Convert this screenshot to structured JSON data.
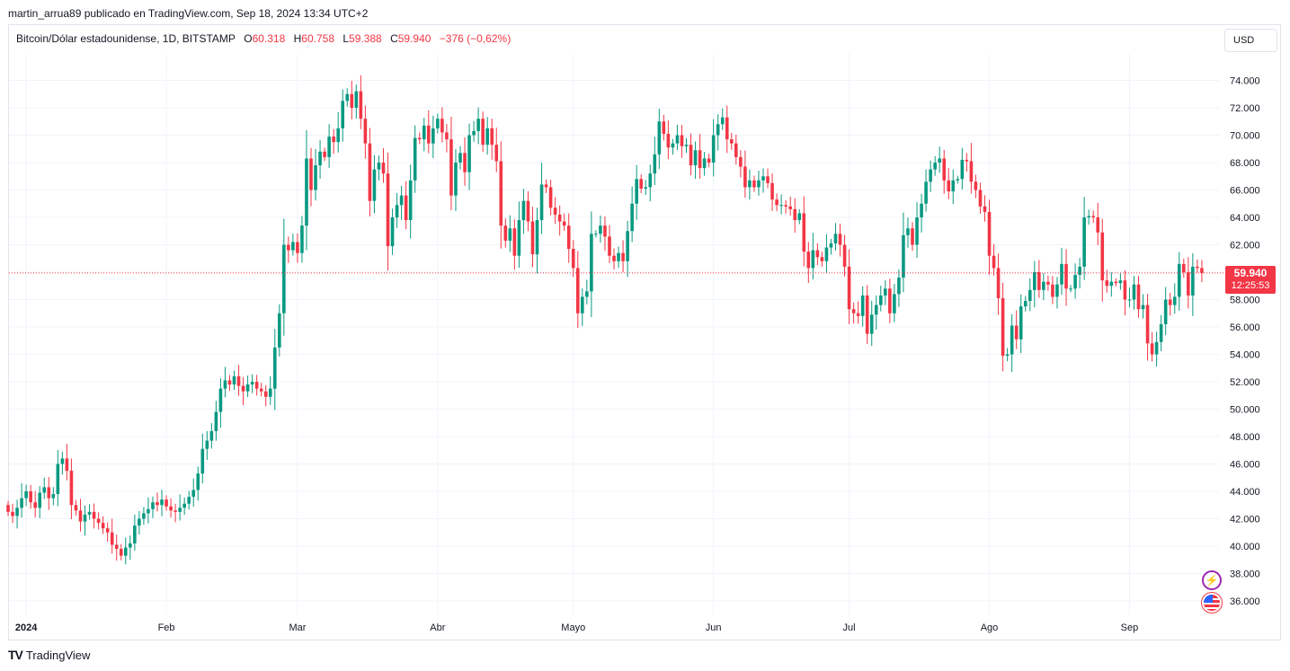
{
  "header": {
    "caption": "martin_arrua89 publicado en TradingView.com, Sep 18, 2024 13:34 UTC+2"
  },
  "legend": {
    "symbol": "Bitcoin/Dólar estadounidense, 1D, BITSTAMP",
    "o_label": "O",
    "o_value": "60.318",
    "h_label": "H",
    "h_value": "60.758",
    "l_label": "L",
    "l_value": "59.388",
    "c_label": "C",
    "c_value": "59.940",
    "change": "−376 (−0,62%)"
  },
  "currency_button": "USD",
  "price_tag": {
    "price": "59.940",
    "countdown": "12:25:53"
  },
  "brand": {
    "logo": "TV",
    "name": "TradingView"
  },
  "icons": {
    "bolt": "lightning-icon",
    "flag": "us-flag-icon",
    "logo": "tradingview-logo-icon"
  },
  "colors": {
    "up": "#089981",
    "down": "#f23645",
    "grid": "#f0f3fa",
    "axis_text": "#131722",
    "price_line": "#f23645"
  },
  "chart_data": {
    "type": "candlestick",
    "title": "Bitcoin/Dólar estadounidense, 1D, BITSTAMP",
    "xlabel": "",
    "ylabel": "",
    "ylim": [
      35000,
      76000
    ],
    "y_ticks": [
      {
        "value": 74000,
        "label": "74.000"
      },
      {
        "value": 72000,
        "label": "72.000"
      },
      {
        "value": 70000,
        "label": "70.000"
      },
      {
        "value": 68000,
        "label": "68.000"
      },
      {
        "value": 66000,
        "label": "66.000"
      },
      {
        "value": 64000,
        "label": "64.000"
      },
      {
        "value": 62000,
        "label": "62.000"
      },
      {
        "value": 60000,
        "label": "60.000"
      },
      {
        "value": 58000,
        "label": "58.000"
      },
      {
        "value": 56000,
        "label": "56.000"
      },
      {
        "value": 54000,
        "label": "54.000"
      },
      {
        "value": 52000,
        "label": "52.000"
      },
      {
        "value": 50000,
        "label": "50.000"
      },
      {
        "value": 48000,
        "label": "48.000"
      },
      {
        "value": 46000,
        "label": "46.000"
      },
      {
        "value": 44000,
        "label": "44.000"
      },
      {
        "value": 42000,
        "label": "42.000"
      },
      {
        "value": 40000,
        "label": "40.000"
      },
      {
        "value": 38000,
        "label": "38.000"
      },
      {
        "value": 36000,
        "label": "36.000"
      }
    ],
    "x_ticks": [
      {
        "day": 4,
        "label": "2024",
        "bold": true
      },
      {
        "day": 35,
        "label": "Feb"
      },
      {
        "day": 64,
        "label": "Mar"
      },
      {
        "day": 95,
        "label": "Abr"
      },
      {
        "day": 125,
        "label": "Mayo"
      },
      {
        "day": 156,
        "label": "Jun"
      },
      {
        "day": 186,
        "label": "Jul"
      },
      {
        "day": 217,
        "label": "Ago"
      },
      {
        "day": 248,
        "label": "Sep"
      }
    ],
    "grid": true,
    "last_price": 59940,
    "close_series": [
      42500,
      42200,
      42800,
      43500,
      44000,
      43200,
      42800,
      43900,
      44300,
      43500,
      43800,
      46000,
      46400,
      45500,
      43000,
      42600,
      41800,
      42300,
      42500,
      42000,
      41700,
      41300,
      41000,
      40100,
      39800,
      39300,
      39900,
      40200,
      41500,
      42000,
      42400,
      42700,
      43200,
      43000,
      43400,
      42900,
      42600,
      42500,
      42800,
      43100,
      43600,
      44100,
      45300,
      47100,
      47700,
      48400,
      49800,
      51500,
      52100,
      51800,
      52400,
      51700,
      51300,
      51800,
      52000,
      51500,
      51300,
      50900,
      51500,
      54500,
      57000,
      62000,
      61600,
      62200,
      61400,
      63400,
      68300,
      66000,
      67800,
      68800,
      68400,
      69900,
      69500,
      70500,
      72500,
      73000,
      72000,
      73200,
      71200,
      69400,
      65200,
      67500,
      68000,
      67200,
      61900,
      64000,
      64900,
      65600,
      63800,
      66700,
      69800,
      69700,
      70700,
      69400,
      70500,
      71200,
      70200,
      69700,
      65600,
      68000,
      68700,
      67300,
      70000,
      70300,
      71200,
      69300,
      70500,
      69300,
      68100,
      63400,
      62300,
      63200,
      61200,
      63800,
      65200,
      63700,
      61300,
      63800,
      66400,
      66200,
      64700,
      64200,
      63700,
      63400,
      61700,
      60300,
      57000,
      58200,
      58600,
      62800,
      62800,
      63400,
      62600,
      61200,
      60800,
      61400,
      60800,
      63000,
      65000,
      66800,
      66100,
      66200,
      67200,
      68600,
      71000,
      70100,
      69100,
      69400,
      70000,
      69200,
      69300,
      67800,
      68900,
      67600,
      68300,
      68000,
      70000,
      70800,
      71300,
      69700,
      69400,
      68400,
      67700,
      66200,
      66700,
      66200,
      66700,
      67000,
      66500,
      65300,
      64900,
      64900,
      64800,
      64600,
      63800,
      64300,
      61500,
      60300,
      61600,
      61100,
      60800,
      61800,
      62100,
      62800,
      62000,
      60400,
      57300,
      57000,
      56800,
      58300,
      55500,
      56900,
      57600,
      58300,
      58800,
      57000,
      58400,
      59600,
      62700,
      63200,
      62000,
      64000,
      65000,
      66600,
      67500,
      68000,
      68300,
      66700,
      65900,
      66700,
      66800,
      68200,
      68100,
      66600,
      66000,
      64800,
      64400,
      61200,
      60300,
      58100,
      53900,
      54000,
      56100,
      55100,
      57500,
      57900,
      58700,
      60000,
      58700,
      59300,
      59100,
      58200,
      59100,
      60600,
      58800,
      58800,
      59800,
      60400,
      64000,
      64100,
      64000,
      62900,
      59400,
      59000,
      59300,
      59200,
      59400,
      58000,
      58000,
      59100,
      57300,
      57600,
      54800,
      54000,
      54900,
      56200,
      58000,
      57600,
      58200,
      60600,
      60000,
      58300,
      60400,
      60300,
      59940
    ]
  }
}
